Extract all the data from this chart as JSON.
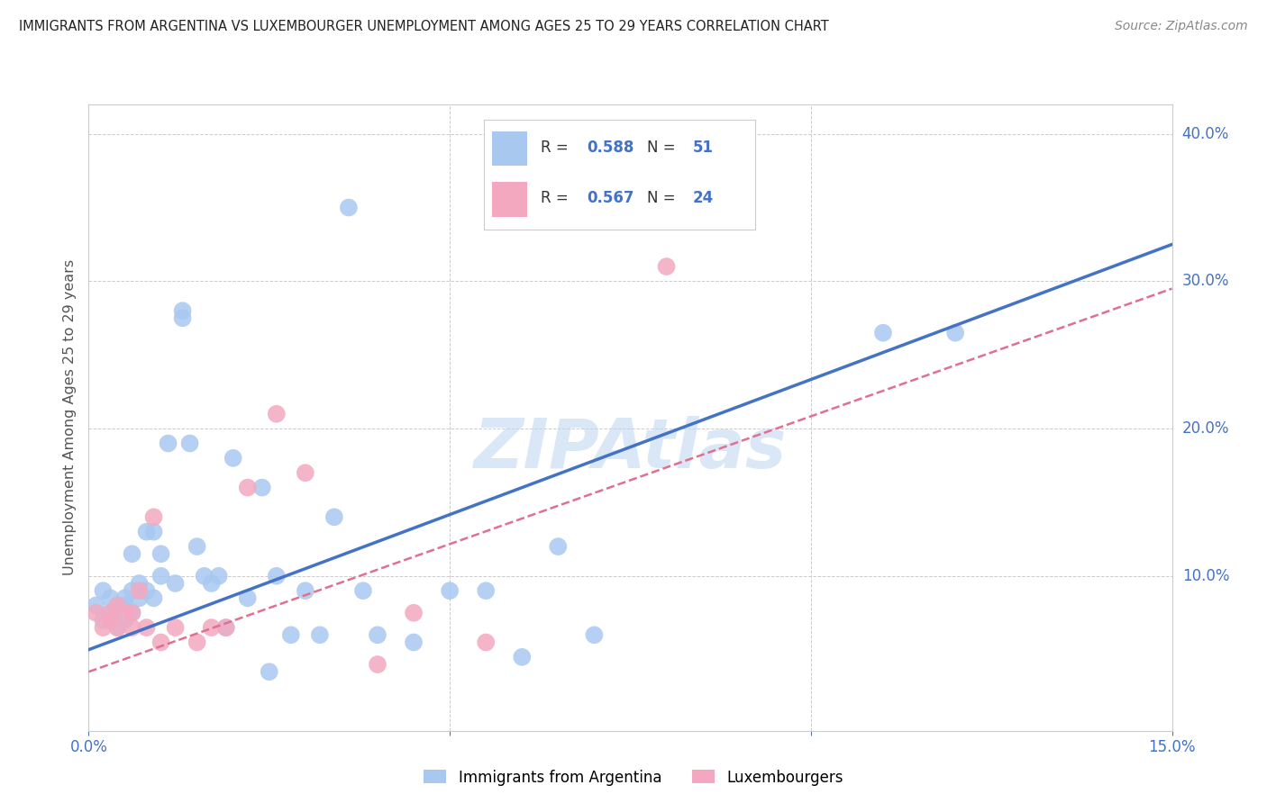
{
  "title": "IMMIGRANTS FROM ARGENTINA VS LUXEMBOURGER UNEMPLOYMENT AMONG AGES 25 TO 29 YEARS CORRELATION CHART",
  "source": "Source: ZipAtlas.com",
  "ylabel": "Unemployment Among Ages 25 to 29 years",
  "watermark": "ZIPAtlas",
  "xlim": [
    0.0,
    0.15
  ],
  "ylim": [
    -0.005,
    0.42
  ],
  "yticks_right": [
    0.1,
    0.2,
    0.3,
    0.4
  ],
  "ytick_right_labels": [
    "10.0%",
    "20.0%",
    "30.0%",
    "40.0%"
  ],
  "series1_label": "Immigrants from Argentina",
  "series1_R": "0.588",
  "series1_N": "51",
  "series1_color": "#A8C8F0",
  "series1_line_color": "#4472C4",
  "series2_label": "Luxembourgers",
  "series2_R": "0.567",
  "series2_N": "24",
  "series2_color": "#F4A8C0",
  "series2_line_color": "#E07090",
  "axis_color": "#4472C4",
  "legend_text_color": "#333333",
  "grid_color": "#CCCCCC",
  "series1_x": [
    0.001,
    0.002,
    0.002,
    0.003,
    0.003,
    0.004,
    0.004,
    0.005,
    0.005,
    0.005,
    0.006,
    0.006,
    0.006,
    0.007,
    0.007,
    0.008,
    0.008,
    0.009,
    0.009,
    0.01,
    0.01,
    0.011,
    0.012,
    0.013,
    0.013,
    0.014,
    0.015,
    0.016,
    0.017,
    0.018,
    0.019,
    0.02,
    0.022,
    0.024,
    0.025,
    0.026,
    0.028,
    0.03,
    0.032,
    0.034,
    0.036,
    0.038,
    0.04,
    0.045,
    0.05,
    0.055,
    0.06,
    0.065,
    0.07,
    0.11,
    0.12
  ],
  "series1_y": [
    0.08,
    0.07,
    0.09,
    0.075,
    0.085,
    0.08,
    0.065,
    0.08,
    0.085,
    0.07,
    0.075,
    0.115,
    0.09,
    0.085,
    0.095,
    0.13,
    0.09,
    0.13,
    0.085,
    0.115,
    0.1,
    0.19,
    0.095,
    0.275,
    0.28,
    0.19,
    0.12,
    0.1,
    0.095,
    0.1,
    0.065,
    0.18,
    0.085,
    0.16,
    0.035,
    0.1,
    0.06,
    0.09,
    0.06,
    0.14,
    0.35,
    0.09,
    0.06,
    0.055,
    0.09,
    0.09,
    0.045,
    0.12,
    0.06,
    0.265,
    0.265
  ],
  "series2_x": [
    0.001,
    0.002,
    0.003,
    0.003,
    0.004,
    0.004,
    0.005,
    0.006,
    0.006,
    0.007,
    0.008,
    0.009,
    0.01,
    0.012,
    0.015,
    0.017,
    0.019,
    0.022,
    0.026,
    0.03,
    0.04,
    0.045,
    0.055,
    0.08
  ],
  "series2_y": [
    0.075,
    0.065,
    0.07,
    0.075,
    0.065,
    0.08,
    0.075,
    0.065,
    0.075,
    0.09,
    0.065,
    0.14,
    0.055,
    0.065,
    0.055,
    0.065,
    0.065,
    0.16,
    0.21,
    0.17,
    0.04,
    0.075,
    0.055,
    0.31
  ],
  "trendline1_x": [
    0.0,
    0.15
  ],
  "trendline1_y": [
    0.05,
    0.325
  ],
  "trendline2_x": [
    0.0,
    0.15
  ],
  "trendline2_y": [
    0.035,
    0.295
  ]
}
